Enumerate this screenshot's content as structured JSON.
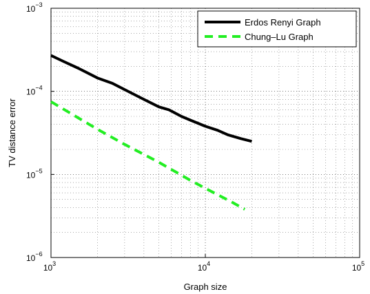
{
  "chart_data": {
    "type": "line",
    "xscale": "log",
    "yscale": "log",
    "xlabel": "Graph size",
    "ylabel": "TV distance error",
    "xlim": [
      1000,
      100000
    ],
    "ylim": [
      1e-06,
      0.001
    ],
    "grid": true,
    "legend_position": "top-right",
    "x_ticks": [
      {
        "value": 1000,
        "base": "10",
        "exp": "3"
      },
      {
        "value": 10000,
        "base": "10",
        "exp": "4"
      },
      {
        "value": 100000,
        "base": "10",
        "exp": "5"
      }
    ],
    "y_ticks": [
      {
        "value": 1e-06,
        "base": "10",
        "exp": "−6"
      },
      {
        "value": 1e-05,
        "base": "10",
        "exp": "−5"
      },
      {
        "value": 0.0001,
        "base": "10",
        "exp": "−4"
      },
      {
        "value": 0.001,
        "base": "10",
        "exp": "−3"
      }
    ],
    "series": [
      {
        "name": "Erdos Renyi Graph",
        "color": "#000000",
        "style": "solid",
        "x": [
          1000,
          1200,
          1500,
          2000,
          2500,
          3000,
          4000,
          5000,
          5800,
          7000,
          8000,
          10000,
          12000,
          14000,
          17000,
          20000
        ],
        "y": [
          0.00027,
          0.00023,
          0.00019,
          0.000145,
          0.000125,
          0.000105,
          8e-05,
          6.5e-05,
          6e-05,
          5e-05,
          4.5e-05,
          3.8e-05,
          3.4e-05,
          3e-05,
          2.7e-05,
          2.5e-05
        ]
      },
      {
        "name": "Chung–Lu Graph",
        "color": "#22ee22",
        "style": "dashed",
        "x": [
          1000,
          1500,
          2000,
          3000,
          5000,
          8000,
          10000,
          15000,
          18000
        ],
        "y": [
          7.5e-05,
          4.8e-05,
          3.5e-05,
          2.3e-05,
          1.4e-05,
          8.5e-06,
          6.8e-06,
          4.6e-06,
          3.8e-06
        ]
      }
    ]
  }
}
